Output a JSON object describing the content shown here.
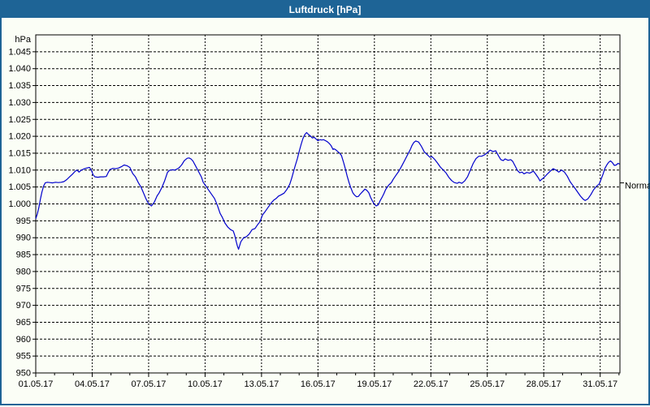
{
  "window": {
    "title": "Luftdruck [hPa]"
  },
  "colors": {
    "titlebar": "#1E6496",
    "frame": "#1E6496",
    "background": "#FBFEF6",
    "grid": "#000000",
    "axis": "#000000",
    "line": "#0000CC"
  },
  "chart_data": {
    "type": "line",
    "title": "Luftdruck [hPa]",
    "ylabel": "hPa",
    "y_min": 950,
    "y_max": 1050,
    "y_tick_step": 5,
    "y_tick_labels": [
      "1.045",
      "1.040",
      "1.035",
      "1.030",
      "1.025",
      "1.020",
      "1.015",
      "1.010",
      "1.005",
      "1.000",
      "995",
      "990",
      "985",
      "980",
      "975",
      "970",
      "965",
      "960",
      "955",
      "950"
    ],
    "x_span_days": 31.05,
    "x_minor_tick_every_days": 1,
    "x_ticks": [
      {
        "day": 0,
        "label": "01.05.17"
      },
      {
        "day": 3,
        "label": "04.05.17"
      },
      {
        "day": 6,
        "label": "07.05.17"
      },
      {
        "day": 9,
        "label": "10.05.17"
      },
      {
        "day": 12,
        "label": "13.05.17"
      },
      {
        "day": 15,
        "label": "16.05.17"
      },
      {
        "day": 18,
        "label": "19.05.17"
      },
      {
        "day": 21,
        "label": "22.05.17"
      },
      {
        "day": 24,
        "label": "25.05.17"
      },
      {
        "day": 27,
        "label": "28.05.17"
      },
      {
        "day": 30,
        "label": "31.05.17"
      }
    ],
    "grid": "dashed-both-axes",
    "legend_position": "none",
    "normal_marker": {
      "label": "Normal",
      "value": 1005.5
    },
    "series": [
      {
        "name": "Luftdruck",
        "unit": "hPa",
        "points": [
          [
            0,
            995.6
          ],
          [
            0.08,
            997
          ],
          [
            0.17,
            999
          ],
          [
            0.25,
            1001.5
          ],
          [
            0.33,
            1003.5
          ],
          [
            0.42,
            1005.3
          ],
          [
            0.5,
            1006.2
          ],
          [
            0.62,
            1006.4
          ],
          [
            0.75,
            1006.3
          ],
          [
            0.9,
            1006.2
          ],
          [
            1.05,
            1006.4
          ],
          [
            1.2,
            1006.3
          ],
          [
            1.35,
            1006.4
          ],
          [
            1.5,
            1006.6
          ],
          [
            1.65,
            1007.2
          ],
          [
            1.8,
            1008
          ],
          [
            1.95,
            1008.8
          ],
          [
            2.1,
            1009.7
          ],
          [
            2.2,
            1010
          ],
          [
            2.3,
            1009.4
          ],
          [
            2.4,
            1009.9
          ],
          [
            2.55,
            1010.3
          ],
          [
            2.7,
            1010.6
          ],
          [
            2.85,
            1010.8
          ],
          [
            2.95,
            1010.1
          ],
          [
            3.05,
            1008.6
          ],
          [
            3.15,
            1008
          ],
          [
            3.3,
            1007.9
          ],
          [
            3.45,
            1008
          ],
          [
            3.6,
            1008
          ],
          [
            3.75,
            1008.1
          ],
          [
            3.85,
            1009.3
          ],
          [
            3.95,
            1010.2
          ],
          [
            4.1,
            1010.5
          ],
          [
            4.25,
            1010.4
          ],
          [
            4.4,
            1010.6
          ],
          [
            4.55,
            1011
          ],
          [
            4.7,
            1011.5
          ],
          [
            4.85,
            1011.3
          ],
          [
            5,
            1010.8
          ],
          [
            5.15,
            1009
          ],
          [
            5.3,
            1008
          ],
          [
            5.45,
            1006.3
          ],
          [
            5.6,
            1004.9
          ],
          [
            5.7,
            1003.6
          ],
          [
            5.85,
            1001.6
          ],
          [
            5.95,
            1000.5
          ],
          [
            6.05,
            999.8
          ],
          [
            6.15,
            999.4
          ],
          [
            6.3,
            1000.5
          ],
          [
            6.45,
            1002.4
          ],
          [
            6.55,
            1003.2
          ],
          [
            6.7,
            1004.8
          ],
          [
            6.85,
            1006.8
          ],
          [
            7,
            1009.3
          ],
          [
            7.1,
            1009.9
          ],
          [
            7.25,
            1010.1
          ],
          [
            7.4,
            1010
          ],
          [
            7.5,
            1010.3
          ],
          [
            7.6,
            1010.6
          ],
          [
            7.75,
            1011.5
          ],
          [
            7.9,
            1012.8
          ],
          [
            8.05,
            1013.5
          ],
          [
            8.15,
            1013.6
          ],
          [
            8.25,
            1013.3
          ],
          [
            8.35,
            1012.7
          ],
          [
            8.5,
            1011.2
          ],
          [
            8.65,
            1009.6
          ],
          [
            8.8,
            1008
          ],
          [
            8.9,
            1006.4
          ],
          [
            9.05,
            1005.2
          ],
          [
            9.2,
            1004
          ],
          [
            9.35,
            1002.8
          ],
          [
            9.5,
            1001.6
          ],
          [
            9.65,
            999.6
          ],
          [
            9.8,
            997.2
          ],
          [
            9.92,
            996
          ],
          [
            10.05,
            994.4
          ],
          [
            10.2,
            993.2
          ],
          [
            10.35,
            992.4
          ],
          [
            10.5,
            992
          ],
          [
            10.57,
            990.8
          ],
          [
            10.65,
            989
          ],
          [
            10.72,
            987.5
          ],
          [
            10.78,
            986.6
          ],
          [
            10.9,
            988.8
          ],
          [
            11.05,
            990
          ],
          [
            11.2,
            990.3
          ],
          [
            11.35,
            991.1
          ],
          [
            11.5,
            992.4
          ],
          [
            11.65,
            992.7
          ],
          [
            11.8,
            993.9
          ],
          [
            11.92,
            994.7
          ],
          [
            12.05,
            996.7
          ],
          [
            12.2,
            997.8
          ],
          [
            12.35,
            999
          ],
          [
            12.5,
            1000.2
          ],
          [
            12.65,
            1001.1
          ],
          [
            12.78,
            1001.6
          ],
          [
            12.9,
            1002.3
          ],
          [
            13.05,
            1002.7
          ],
          [
            13.2,
            1003.2
          ],
          [
            13.35,
            1004.3
          ],
          [
            13.5,
            1005.8
          ],
          [
            13.6,
            1007.5
          ],
          [
            13.7,
            1009.5
          ],
          [
            13.8,
            1011.5
          ],
          [
            13.9,
            1013.3
          ],
          [
            14,
            1015.5
          ],
          [
            14.1,
            1017.5
          ],
          [
            14.2,
            1019.3
          ],
          [
            14.3,
            1020.5
          ],
          [
            14.4,
            1021.1
          ],
          [
            14.5,
            1020.5
          ],
          [
            14.6,
            1020.1
          ],
          [
            14.7,
            1019.5
          ],
          [
            14.8,
            1019.7
          ],
          [
            14.9,
            1019.2
          ],
          [
            15,
            1018.7
          ],
          [
            15.1,
            1019
          ],
          [
            15.2,
            1018.9
          ],
          [
            15.3,
            1019
          ],
          [
            15.4,
            1018.7
          ],
          [
            15.5,
            1018.4
          ],
          [
            15.6,
            1017.9
          ],
          [
            15.7,
            1017.2
          ],
          [
            15.8,
            1016.1
          ],
          [
            15.85,
            1016.3
          ],
          [
            15.95,
            1016
          ],
          [
            16.05,
            1015.5
          ],
          [
            16.15,
            1015
          ],
          [
            16.25,
            1014.3
          ],
          [
            16.35,
            1012.5
          ],
          [
            16.45,
            1010.5
          ],
          [
            16.55,
            1008.3
          ],
          [
            16.65,
            1006.3
          ],
          [
            16.75,
            1004.7
          ],
          [
            16.85,
            1003.3
          ],
          [
            16.95,
            1002.6
          ],
          [
            17.05,
            1002.1
          ],
          [
            17.15,
            1002.2
          ],
          [
            17.25,
            1002.9
          ],
          [
            17.4,
            1003.8
          ],
          [
            17.5,
            1004.4
          ],
          [
            17.6,
            1004
          ],
          [
            17.7,
            1003.3
          ],
          [
            17.8,
            1001.9
          ],
          [
            17.9,
            1000.8
          ],
          [
            18,
            999.9
          ],
          [
            18.1,
            999.4
          ],
          [
            18.2,
            999.7
          ],
          [
            18.3,
            1000.9
          ],
          [
            18.4,
            1001.9
          ],
          [
            18.5,
            1003
          ],
          [
            18.6,
            1004.3
          ],
          [
            18.75,
            1005.5
          ],
          [
            18.9,
            1006.3
          ],
          [
            19,
            1007.3
          ],
          [
            19.15,
            1008.5
          ],
          [
            19.3,
            1009.7
          ],
          [
            19.45,
            1011.2
          ],
          [
            19.6,
            1012.8
          ],
          [
            19.75,
            1014.4
          ],
          [
            19.9,
            1016
          ],
          [
            20,
            1017.3
          ],
          [
            20.1,
            1018.2
          ],
          [
            20.2,
            1018.6
          ],
          [
            20.35,
            1018.3
          ],
          [
            20.5,
            1017
          ],
          [
            20.65,
            1015.4
          ],
          [
            20.8,
            1014.6
          ],
          [
            20.95,
            1013.8
          ],
          [
            21.05,
            1014
          ],
          [
            21.2,
            1013.2
          ],
          [
            21.35,
            1012.1
          ],
          [
            21.5,
            1010.9
          ],
          [
            21.65,
            1010.1
          ],
          [
            21.8,
            1009.2
          ],
          [
            21.95,
            1007.9
          ],
          [
            22.1,
            1006.9
          ],
          [
            22.25,
            1006.3
          ],
          [
            22.4,
            1006.1
          ],
          [
            22.5,
            1006.4
          ],
          [
            22.65,
            1006.1
          ],
          [
            22.8,
            1006.8
          ],
          [
            22.95,
            1008
          ],
          [
            23.1,
            1010
          ],
          [
            23.25,
            1012
          ],
          [
            23.4,
            1013.4
          ],
          [
            23.55,
            1014.1
          ],
          [
            23.7,
            1014.1
          ],
          [
            23.85,
            1014.5
          ],
          [
            24,
            1015.1
          ],
          [
            24.15,
            1015.9
          ],
          [
            24.3,
            1015.5
          ],
          [
            24.45,
            1015.7
          ],
          [
            24.6,
            1014.2
          ],
          [
            24.72,
            1013.1
          ],
          [
            24.85,
            1012.8
          ],
          [
            24.95,
            1013.3
          ],
          [
            25.1,
            1012.9
          ],
          [
            25.25,
            1013.1
          ],
          [
            25.35,
            1012.6
          ],
          [
            25.5,
            1011
          ],
          [
            25.6,
            1009.9
          ],
          [
            25.72,
            1009.2
          ],
          [
            25.85,
            1009.4
          ],
          [
            25.95,
            1008.9
          ],
          [
            26.1,
            1009.3
          ],
          [
            26.25,
            1009.1
          ],
          [
            26.35,
            1009.4
          ],
          [
            26.45,
            1009.7
          ],
          [
            26.55,
            1009
          ],
          [
            26.7,
            1007.8
          ],
          [
            26.8,
            1006.8
          ],
          [
            26.9,
            1007.3
          ],
          [
            27.05,
            1008
          ],
          [
            27.2,
            1008.9
          ],
          [
            27.35,
            1009.7
          ],
          [
            27.5,
            1010.4
          ],
          [
            27.65,
            1010
          ],
          [
            27.8,
            1009.4
          ],
          [
            27.95,
            1010
          ],
          [
            28.1,
            1009.4
          ],
          [
            28.25,
            1008.2
          ],
          [
            28.4,
            1006.6
          ],
          [
            28.5,
            1005.8
          ],
          [
            28.65,
            1004.7
          ],
          [
            28.8,
            1003.5
          ],
          [
            28.95,
            1002.3
          ],
          [
            29.1,
            1001.4
          ],
          [
            29.2,
            1001
          ],
          [
            29.35,
            1001.5
          ],
          [
            29.5,
            1002.7
          ],
          [
            29.65,
            1004.2
          ],
          [
            29.8,
            1005.2
          ],
          [
            29.95,
            1005.9
          ],
          [
            30.05,
            1007.3
          ],
          [
            30.15,
            1008.8
          ],
          [
            30.25,
            1010.5
          ],
          [
            30.35,
            1011.5
          ],
          [
            30.45,
            1012.3
          ],
          [
            30.55,
            1012.7
          ],
          [
            30.65,
            1012.2
          ],
          [
            30.75,
            1011.4
          ],
          [
            30.85,
            1011.5
          ],
          [
            30.95,
            1012
          ],
          [
            31.03,
            1011.8
          ]
        ]
      }
    ]
  }
}
